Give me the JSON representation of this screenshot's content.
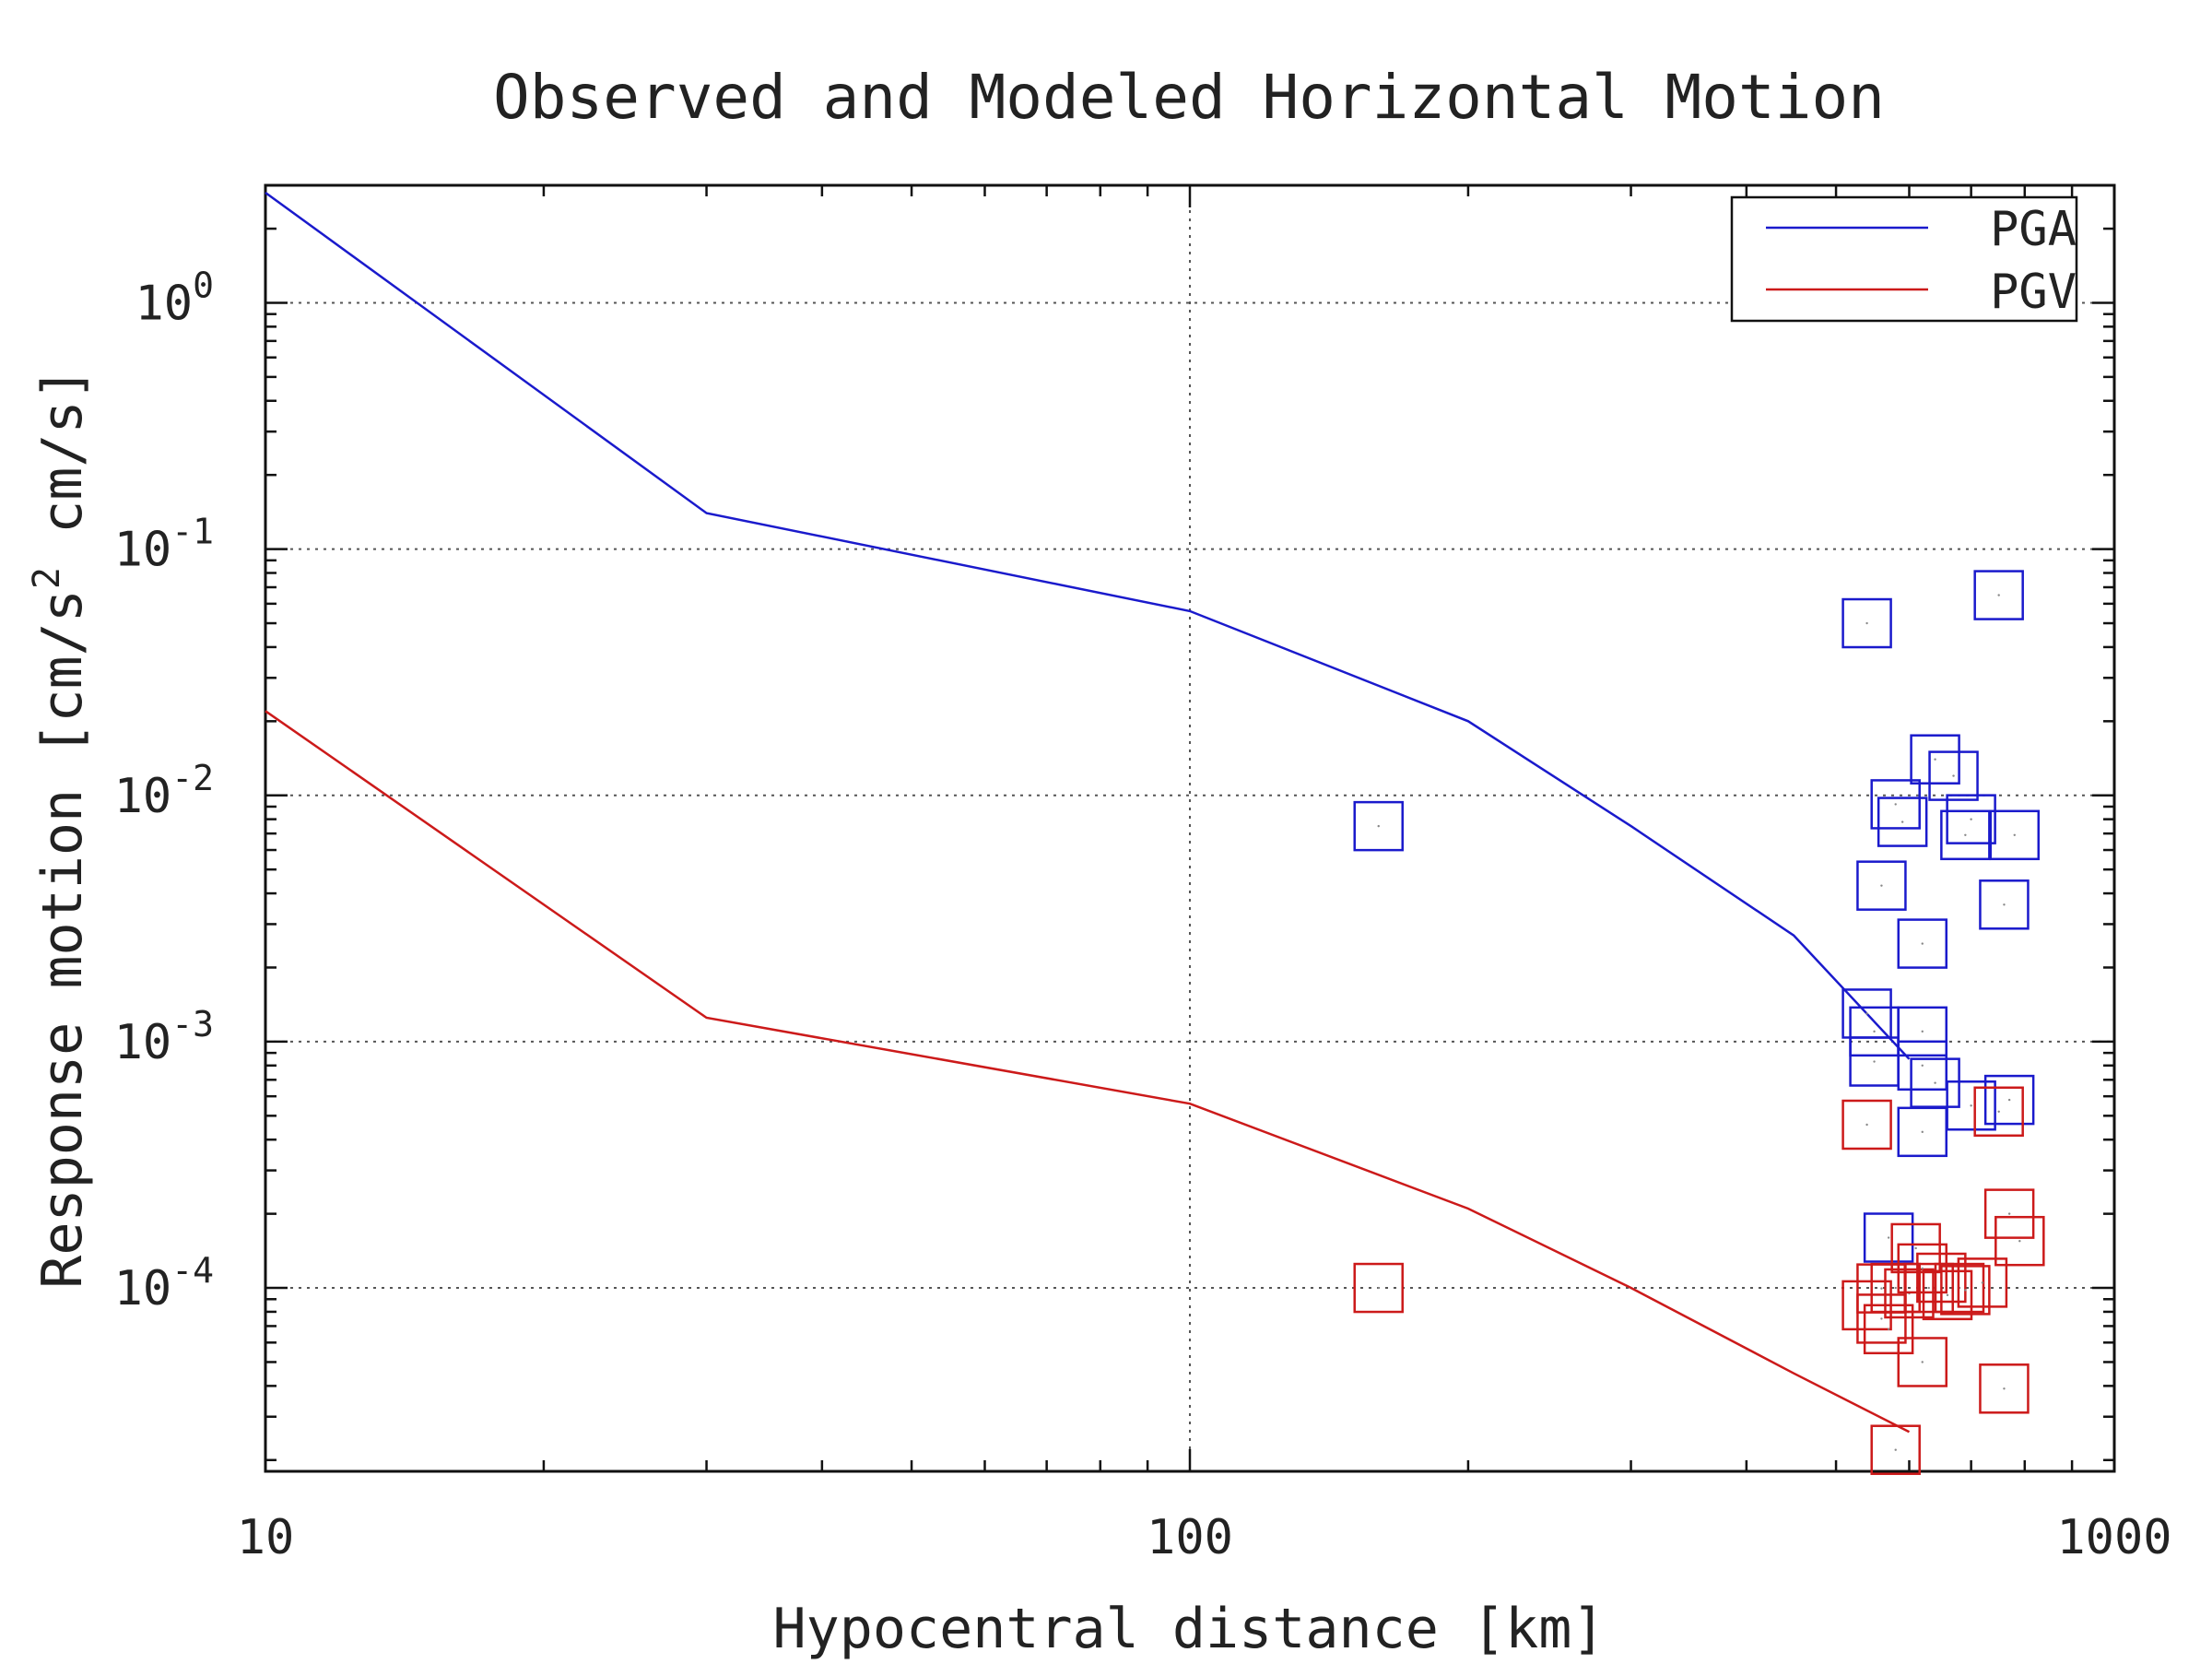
{
  "chart_data": {
    "type": "scatter",
    "title": "Observed and Modeled Horizontal Motion",
    "xlabel": "Hypocentral distance [km]",
    "ylabel_main": "Response motion [cm/s",
    "ylabel_sup": "2",
    "ylabel_tail": " cm/s]",
    "xscale": "log",
    "yscale": "log",
    "xlim": [
      10,
      1000
    ],
    "ylim": [
      1.8e-05,
      3.0
    ],
    "grid": true,
    "legend_position": "top-right",
    "x_ticks": [
      {
        "value": 10,
        "label": "10"
      },
      {
        "value": 100,
        "label": "100"
      },
      {
        "value": 1000,
        "label": "1000"
      }
    ],
    "y_ticks": [
      {
        "value": 1,
        "base": "10",
        "exp": "0"
      },
      {
        "value": 0.1,
        "base": "10",
        "exp": "-1"
      },
      {
        "value": 0.01,
        "base": "10",
        "exp": "-2"
      },
      {
        "value": 0.001,
        "base": "10",
        "exp": "-3"
      },
      {
        "value": 0.0001,
        "base": "10",
        "exp": "-4"
      }
    ],
    "series": [
      {
        "name": "PGA",
        "color": "#1a1acc",
        "line": {
          "x": [
            10,
            30,
            100,
            200,
            300,
            450,
            600
          ],
          "y": [
            2.8,
            0.14,
            0.056,
            0.02,
            0.0075,
            0.0027,
            0.00085
          ]
        },
        "points": {
          "x": [
            160,
            540,
            750,
            640,
            670,
            700,
            580,
            590,
            690,
            780,
            560,
            760,
            620,
            540,
            550,
            620,
            620,
            640,
            550,
            620,
            700,
            770,
            570
          ],
          "y": [
            0.0075,
            0.05,
            0.065,
            0.014,
            0.012,
            0.008,
            0.0092,
            0.0078,
            0.0069,
            0.0069,
            0.0043,
            0.0036,
            0.0025,
            0.0013,
            0.0011,
            0.0011,
            0.0008,
            0.00068,
            0.00083,
            0.00043,
            0.00055,
            0.00058,
            0.00016
          ]
        }
      },
      {
        "name": "PGV",
        "color": "#cc1a1a",
        "line": {
          "x": [
            10,
            30,
            100,
            200,
            300,
            450,
            600
          ],
          "y": [
            0.022,
            0.00125,
            0.00056,
            0.00021,
            0.0001,
            4.5e-05,
            2.6e-05
          ]
        },
        "points": {
          "x": [
            160,
            540,
            750,
            770,
            790,
            540,
            560,
            570,
            580,
            600,
            610,
            620,
            630,
            650,
            680,
            690,
            720,
            560,
            620,
            760,
            580,
            660
          ],
          "y": [
            0.0001,
            0.00046,
            0.00052,
            0.0002,
            0.000155,
            8.5e-05,
            7.5e-05,
            6.8e-05,
            0.0001,
            9.5e-05,
            0.000145,
            0.00012,
            0.0001,
            0.00011,
            0.0001,
            9.8e-05,
            0.000105,
            9.95e-05,
            5e-05,
            3.9e-05,
            2.2e-05,
            9.35e-05
          ]
        }
      }
    ]
  }
}
